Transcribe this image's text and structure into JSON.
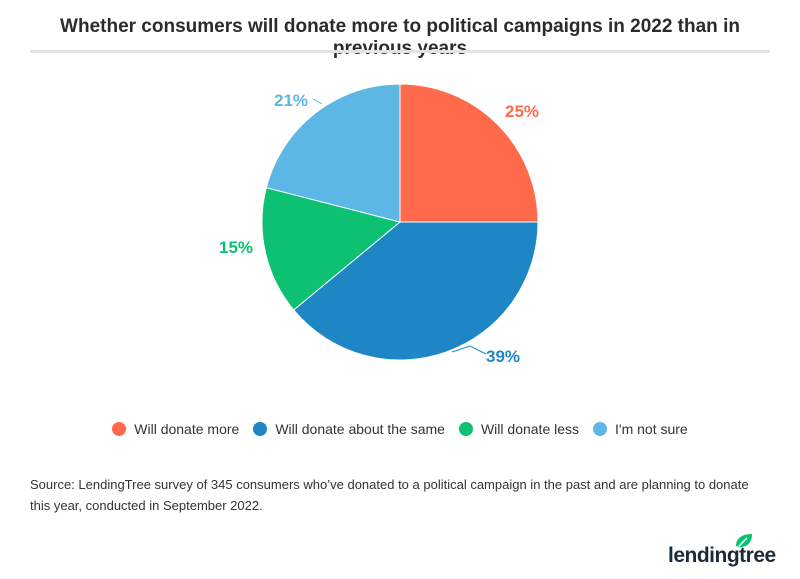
{
  "title": "Whether consumers will donate more to political campaigns in 2022 than in previous years",
  "chart_data": {
    "type": "pie",
    "title": "Whether consumers will donate more to political campaigns in 2022 than in previous years",
    "categories": [
      "Will donate more",
      "Will donate about the same",
      "Will donate less",
      "I'm not sure"
    ],
    "values": [
      25,
      39,
      15,
      21
    ],
    "labels": [
      "25%",
      "39%",
      "15%",
      "21%"
    ],
    "colors": [
      "#FF6B4A",
      "#1F86C5",
      "#0CC172",
      "#5DB7E4"
    ],
    "start": "top, clockwise",
    "legend_position": "bottom"
  },
  "source": "Source: LendingTree survey of 345 consumers who’ve donated to a political campaign in the past and are planning to donate this year, conducted in September 2022.",
  "logo": {
    "text": "lendingtree",
    "icon": "leaf-icon",
    "color": "#0CC172"
  }
}
